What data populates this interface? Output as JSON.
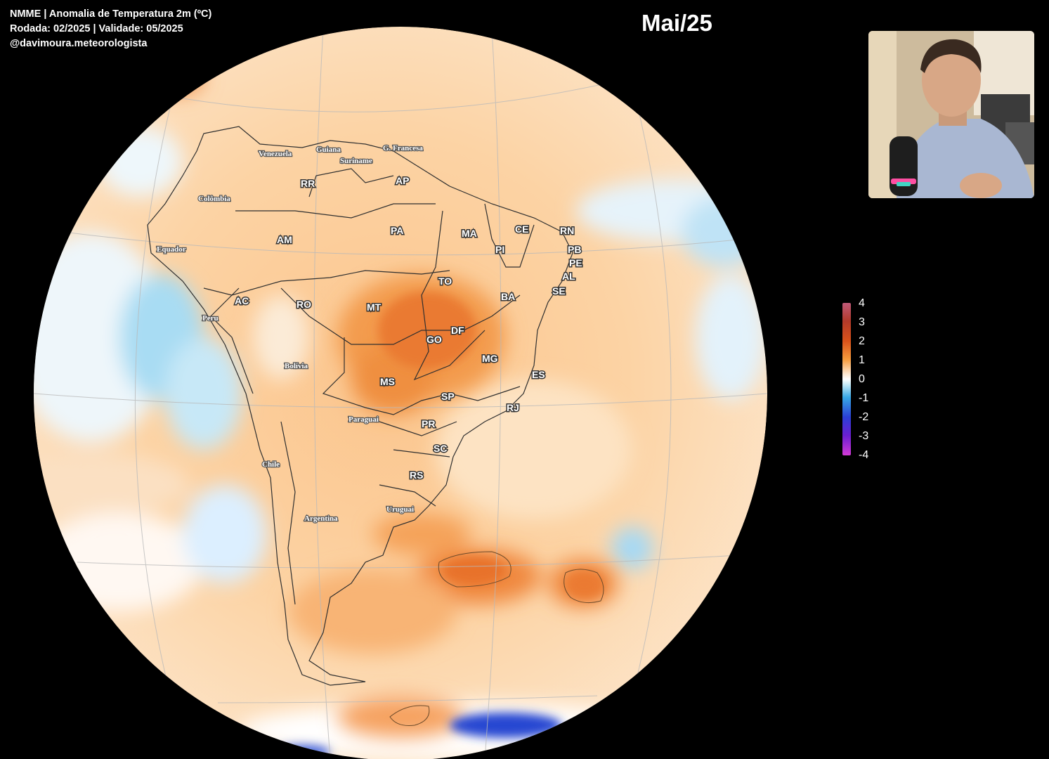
{
  "header": {
    "line1": "NMME | Anomalia de Temperatura 2m (ºC)",
    "line2": "Rodada: 02/2025 | Validade: 05/2025",
    "line3": "@davimoura.meteorologista"
  },
  "month_label": "Mai/25",
  "colorbar": {
    "ticks": [
      "4",
      "3",
      "2",
      "1",
      "0",
      "-1",
      "-2",
      "-3",
      "-4"
    ],
    "colors": [
      "#c05a78",
      "#b23a2a",
      "#d9521a",
      "#f59a3c",
      "#ffffff",
      "#37a8e6",
      "#2b3fd6",
      "#6b1fd1",
      "#d23ad6"
    ]
  },
  "map": {
    "states": [
      "RR",
      "AP",
      "AM",
      "PA",
      "MA",
      "CE",
      "RN",
      "PB",
      "PE",
      "AL",
      "SE",
      "PI",
      "TO",
      "BA",
      "AC",
      "RO",
      "MT",
      "GO",
      "DF",
      "MG",
      "ES",
      "MS",
      "SP",
      "RJ",
      "PR",
      "SC",
      "RS"
    ],
    "countries": [
      "Venezuela",
      "Guiana",
      "Suriname",
      "G. Francesa",
      "Colômbia",
      "Equador",
      "Peru",
      "Bolívia",
      "Paraguai",
      "Chile",
      "Argentina",
      "Uruguai"
    ]
  },
  "webcam": {
    "icon": "presenter-video"
  }
}
